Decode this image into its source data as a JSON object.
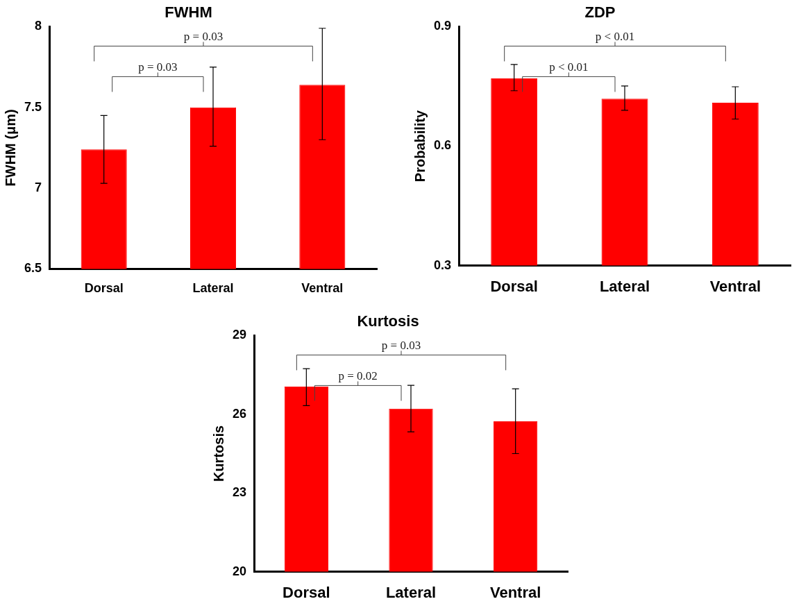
{
  "chart_data": [
    {
      "type": "bar",
      "title": "FWHM",
      "ylabel": "FWHM (μm)",
      "categories": [
        "Dorsal",
        "Lateral",
        "Ventral"
      ],
      "values": [
        7.24,
        7.5,
        7.64
      ],
      "color": "#ff0000",
      "errors": [
        [
          7.03,
          7.45
        ],
        [
          7.26,
          7.75
        ],
        [
          7.3,
          7.99
        ]
      ],
      "ylim": [
        6.5,
        8
      ],
      "yticks": [
        6.5,
        7,
        7.5,
        8
      ],
      "grid": false,
      "legend": false,
      "annotations": [
        "p = 0.03",
        "p = 0.03"
      ]
    },
    {
      "type": "bar",
      "title": "ZDP",
      "ylabel": "Probability",
      "categories": [
        "Dorsal",
        "Lateral",
        "Ventral"
      ],
      "values": [
        0.77,
        0.719,
        0.709
      ],
      "color": "#ff0000",
      "errors": [
        [
          0.739,
          0.805
        ],
        [
          0.69,
          0.751
        ],
        [
          0.668,
          0.749
        ]
      ],
      "ylim": [
        0.3,
        0.9
      ],
      "yticks": [
        0.3,
        0.6,
        0.9
      ],
      "grid": false,
      "legend": false,
      "annotations": [
        "p < 0.01",
        "p < 0.01"
      ]
    },
    {
      "type": "bar",
      "title": "Kurtosis",
      "ylabel": "Kurtosis",
      "categories": [
        "Dorsal",
        "Lateral",
        "Ventral"
      ],
      "values": [
        27.05,
        26.21,
        25.73
      ],
      "color": "#ff0000",
      "errors": [
        [
          26.33,
          27.74
        ],
        [
          25.33,
          27.1
        ],
        [
          24.5,
          26.97
        ]
      ],
      "ylim": [
        20,
        29
      ],
      "yticks": [
        20,
        23,
        26,
        29
      ],
      "grid": false,
      "legend": false,
      "annotations": [
        "p = 0.03",
        "p = 0.02"
      ]
    }
  ]
}
